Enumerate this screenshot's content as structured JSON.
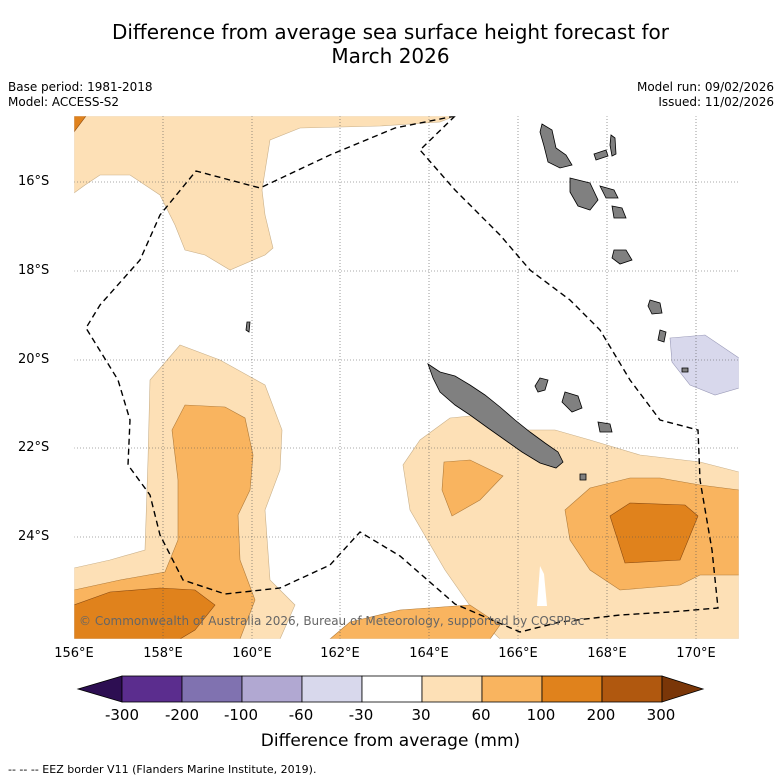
{
  "header": {
    "title_line1": "Difference from average sea surface height forecast for",
    "title_line2": "March 2026",
    "base_period": "Base period: 1981-2018",
    "model": "Model: ACCESS-S2",
    "model_run": "Model run: 09/02/2026",
    "issued": "Issued: 11/02/2026"
  },
  "map": {
    "region": "Coral Sea / New Caledonia / Vanuatu",
    "lat_labels": [
      "16°S",
      "18°S",
      "20°S",
      "22°S",
      "24°S"
    ],
    "lon_labels": [
      "156°E",
      "158°E",
      "160°E",
      "162°E",
      "164°E",
      "166°E",
      "168°E",
      "170°E"
    ],
    "credit": "© Commonwealth of Australia 2026, Bureau of Meteorology, supported by COSPPac",
    "land_color": "#808080",
    "eez_line_style": "dashed black"
  },
  "colorbar": {
    "title": "Difference from average (mm)",
    "ticks": [
      "-300",
      "-200",
      "-100",
      "-60",
      "-30",
      "30",
      "60",
      "100",
      "200",
      "300"
    ],
    "colors": [
      "#2d0e52",
      "#5b2d8e",
      "#8072b0",
      "#b1a8d2",
      "#d8d8ec",
      "#ffffff",
      "#fde0b6",
      "#f9b45f",
      "#e0821c",
      "#b0580f",
      "#7a3608"
    ]
  },
  "footer": {
    "legend": "--  --  -- EEZ border V11 (Flanders Marine Institute, 2019)."
  }
}
